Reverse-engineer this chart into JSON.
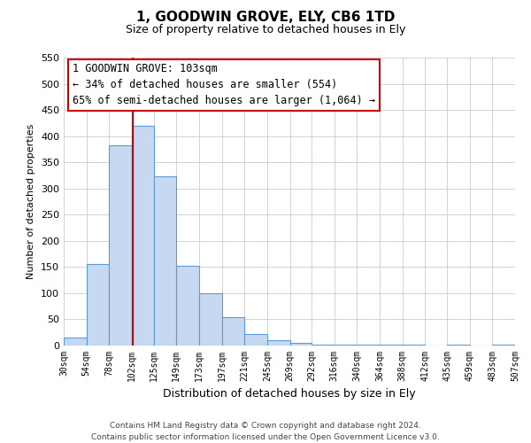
{
  "title": "1, GOODWIN GROVE, ELY, CB6 1TD",
  "subtitle": "Size of property relative to detached houses in Ely",
  "xlabel": "Distribution of detached houses by size in Ely",
  "ylabel": "Number of detached properties",
  "bar_edges": [
    30,
    54,
    78,
    102,
    125,
    149,
    173,
    197,
    221,
    245,
    269,
    292,
    316,
    340,
    364,
    388,
    412,
    435,
    459,
    483,
    507
  ],
  "bar_heights": [
    15,
    155,
    382,
    420,
    323,
    152,
    100,
    55,
    22,
    10,
    5,
    2,
    2,
    1,
    1,
    1,
    0,
    1,
    0,
    1
  ],
  "bar_color": "#c7d9f0",
  "bar_edgecolor": "#5b9bd5",
  "vline_x": 103,
  "vline_color": "#cc0000",
  "ylim": [
    0,
    550
  ],
  "annotation_line1": "1 GOODWIN GROVE: 103sqm",
  "annotation_line2": "← 34% of detached houses are smaller (554)",
  "annotation_line3": "65% of semi-detached houses are larger (1,064) →",
  "footer_line1": "Contains HM Land Registry data © Crown copyright and database right 2024.",
  "footer_line2": "Contains public sector information licensed under the Open Government Licence v3.0.",
  "tick_labels": [
    "30sqm",
    "54sqm",
    "78sqm",
    "102sqm",
    "125sqm",
    "149sqm",
    "173sqm",
    "197sqm",
    "221sqm",
    "245sqm",
    "269sqm",
    "292sqm",
    "316sqm",
    "340sqm",
    "364sqm",
    "388sqm",
    "412sqm",
    "435sqm",
    "459sqm",
    "483sqm",
    "507sqm"
  ],
  "grid_color": "#cccccc",
  "background_color": "#ffffff",
  "title_fontsize": 11,
  "subtitle_fontsize": 9,
  "annotation_fontsize": 8.5,
  "ylabel_fontsize": 8,
  "xlabel_fontsize": 9
}
